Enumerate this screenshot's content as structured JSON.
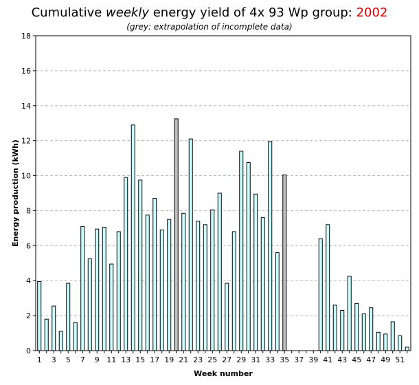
{
  "chart_data": {
    "type": "bar",
    "title_prefix": "Cumulative",
    "title_emph": "weekly",
    "title_rest": "energy yield of 4x 93 Wp group:",
    "title_year": "2002",
    "subtitle": "(grey: extrapolation of incomplete data)",
    "xlabel": "Week number",
    "ylabel": "Energy production (kWh)",
    "ylim": [
      0,
      18
    ],
    "yticks": [
      0,
      2,
      4,
      6,
      8,
      10,
      12,
      14,
      16,
      18
    ],
    "xtick_labels": [
      "1",
      "3",
      "5",
      "7",
      "9",
      "11",
      "13",
      "15",
      "17",
      "19",
      "21",
      "23",
      "25",
      "27",
      "29",
      "31",
      "33",
      "35",
      "37",
      "39",
      "41",
      "43",
      "45",
      "47",
      "49",
      "51"
    ],
    "grid": true,
    "bar_color": "#ccffff",
    "extrapolated_color": "#c0c0c0",
    "weeks": [
      1,
      2,
      3,
      4,
      5,
      6,
      7,
      8,
      9,
      10,
      11,
      12,
      13,
      14,
      15,
      16,
      17,
      18,
      19,
      20,
      21,
      22,
      23,
      24,
      25,
      26,
      27,
      28,
      29,
      30,
      31,
      32,
      33,
      34,
      35,
      36,
      37,
      38,
      39,
      40,
      41,
      42,
      43,
      44,
      45,
      46,
      47,
      48,
      49,
      50,
      51,
      52
    ],
    "values": [
      3.95,
      1.8,
      2.55,
      1.1,
      3.85,
      1.6,
      7.1,
      5.25,
      6.95,
      7.05,
      4.95,
      6.8,
      9.9,
      12.9,
      9.75,
      7.75,
      8.7,
      6.9,
      7.5,
      13.25,
      7.85,
      12.1,
      7.4,
      7.2,
      8.05,
      9.0,
      3.85,
      6.8,
      11.4,
      10.75,
      8.95,
      7.6,
      11.95,
      5.6,
      10.05,
      0,
      0,
      0,
      0,
      6.4,
      7.2,
      2.6,
      2.3,
      4.25,
      2.7,
      2.1,
      2.45,
      1.05,
      0.95,
      1.65,
      0.85,
      0.2
    ],
    "extrapolated_weeks": [
      20,
      35
    ]
  }
}
